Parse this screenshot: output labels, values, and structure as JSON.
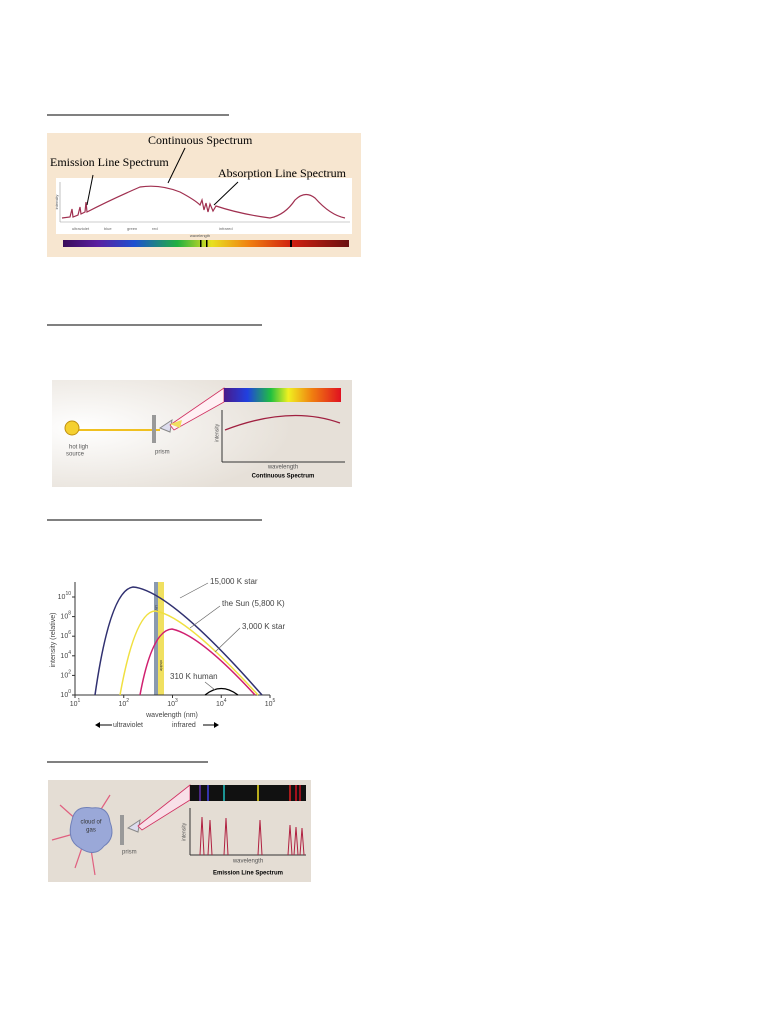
{
  "absorption_figure": {
    "continuous": "Continuous Spectrum",
    "emission": "Emission Line Spectrum",
    "absorption": "Absorption Line Spectrum",
    "y_axis": "intensity",
    "x_axis": "wavelength",
    "bands": [
      "ultraviolet",
      "blue",
      "green",
      "red",
      "infrared"
    ]
  },
  "prism_figure": {
    "source": [
      "hot ligh",
      "source"
    ],
    "prism": "prism",
    "y_axis": "intensity",
    "x_axis": "wavelength",
    "caption": "Continuous Spectrum"
  },
  "blackbody_figure": {
    "y_axis": "intensity (relative)",
    "x_axis": "wavelength (nm)",
    "xticks": [
      {
        "base": "10",
        "exp": "1"
      },
      {
        "base": "10",
        "exp": "2"
      },
      {
        "base": "10",
        "exp": "3"
      },
      {
        "base": "10",
        "exp": "4"
      },
      {
        "base": "10",
        "exp": "5"
      }
    ],
    "yticks": [
      {
        "base": "10",
        "exp": "0"
      },
      {
        "base": "10",
        "exp": "2"
      },
      {
        "base": "10",
        "exp": "4"
      },
      {
        "base": "10",
        "exp": "6"
      },
      {
        "base": "10",
        "exp": "8"
      },
      {
        "base": "10",
        "exp": "10"
      }
    ],
    "curves": [
      "15,000 K star",
      "the Sun (5,800 K)",
      "3,000 K star",
      "310 K human"
    ],
    "uv_band": "UV",
    "visible_band": "visible",
    "left_arrow": "ultraviolet",
    "right_arrow": "infrared"
  },
  "emission_figure": {
    "source": [
      "cloud of",
      "gas"
    ],
    "prism": "prism",
    "y_axis": "intensity",
    "x_axis": "wavelength",
    "caption": "Emission Line Spectrum"
  }
}
